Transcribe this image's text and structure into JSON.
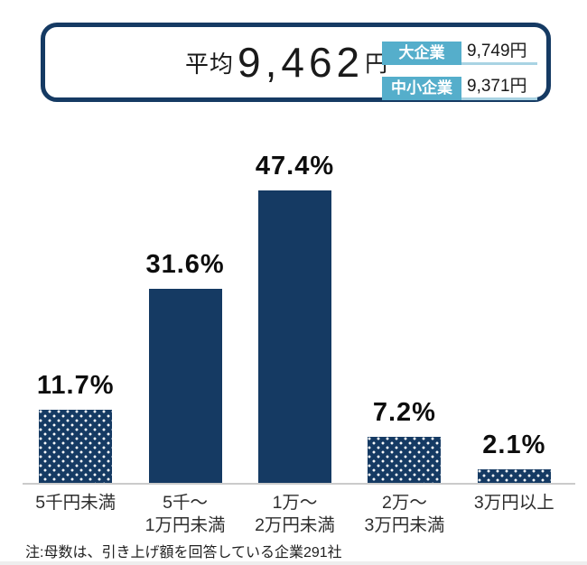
{
  "header": {
    "average_label": "平均",
    "average_value": "9,462",
    "average_unit": "円",
    "legend": [
      {
        "label": "大企業",
        "value": "9,749円"
      },
      {
        "label": "中小企業",
        "value": "9,371円"
      }
    ]
  },
  "chart_data": {
    "type": "bar",
    "title": "",
    "xlabel": "",
    "ylabel": "",
    "unit": "%",
    "ylim": [
      0,
      50
    ],
    "grid": false,
    "legend_position": "header-top-right",
    "categories": [
      "5千円未満",
      "5千〜1万円未満",
      "1万〜2万円未満",
      "2万〜3万円未満",
      "3万円以上"
    ],
    "category_lines": [
      [
        "5千円未満"
      ],
      [
        "5千〜",
        "1万円未満"
      ],
      [
        "1万〜",
        "2万円未満"
      ],
      [
        "2万〜",
        "3万円未満"
      ],
      [
        "3万円以上"
      ]
    ],
    "values": [
      11.7,
      31.6,
      47.4,
      7.2,
      2.1
    ],
    "value_labels": [
      "11.7%",
      "31.6%",
      "47.4%",
      "7.2%",
      "2.1%"
    ],
    "bar_styles": [
      "dotted",
      "solid",
      "solid",
      "dotted",
      "dotted"
    ]
  },
  "note": "注:母数は、引き上げ額を回答している企業291社",
  "colors": {
    "bar_navy": "#153A63",
    "legend_chip_blue": "#55AECB",
    "legend_underline": "#A9D3E3",
    "axis_line": "#CBCBCB",
    "text_dark": "#1A1A1A"
  }
}
